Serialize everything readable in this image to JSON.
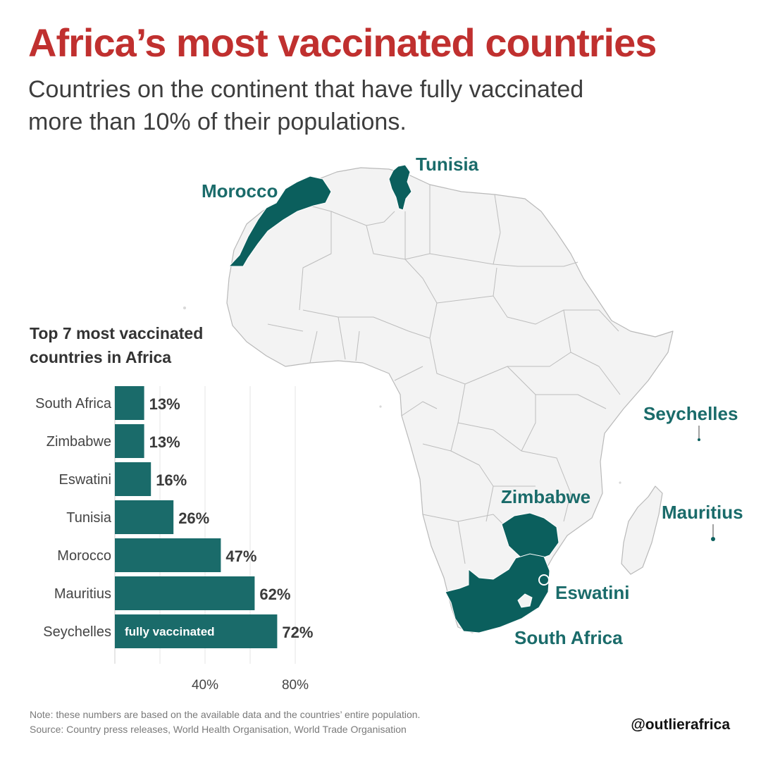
{
  "header": {
    "title": "Africa’s most vaccinated countries",
    "subtitle": "Countries on the continent that have fully vaccinated more than 10% of their populations."
  },
  "colors": {
    "accent_red": "#c0302f",
    "teal": "#1a6b6a",
    "map_fill": "#f3f3f3",
    "highlight": "#0b5f5d"
  },
  "map": {
    "highlighted_countries": [
      "Morocco",
      "Tunisia",
      "Seychelles",
      "Zimbabwe",
      "Mauritius",
      "Eswatini",
      "South Africa"
    ],
    "labels": {
      "tunisia": "Tunisia",
      "morocco": "Morocco",
      "seychelles": "Seychelles",
      "zimbabwe": "Zimbabwe",
      "mauritius": "Mauritius",
      "eswatini": "Eswatini",
      "south_africa": "South Africa"
    }
  },
  "chart_data": {
    "type": "bar",
    "orientation": "horizontal",
    "title": "Top 7 most vaccinated countries in Africa",
    "categories": [
      "South Africa",
      "Zimbabwe",
      "Eswatini",
      "Tunisia",
      "Morocco",
      "Mauritius",
      "Seychelles"
    ],
    "values": [
      13,
      13,
      16,
      26,
      47,
      62,
      72
    ],
    "value_labels": [
      "13%",
      "13%",
      "16%",
      "26%",
      "47%",
      "62%",
      "72%"
    ],
    "bar_annotation": "fully vaccinated",
    "xlim": [
      0,
      80
    ],
    "x_ticks": [
      40,
      80
    ],
    "x_tick_labels": [
      "40%",
      "80%"
    ],
    "grid": true
  },
  "footer": {
    "note": "Note: these numbers are based on the available data and the countries’ entire population.",
    "source": "Source: Country press releases, World Health Organisation, World Trade Organisation",
    "handle": "@outlierafrica"
  }
}
